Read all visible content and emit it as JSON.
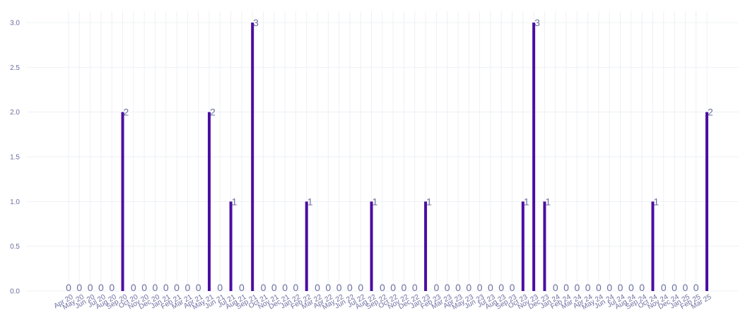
{
  "chart_data": {
    "type": "bar",
    "title": "",
    "xlabel": "",
    "ylabel": "",
    "ylim": [
      0,
      3
    ],
    "yticks": [
      "0.0",
      "0.5",
      "1.0",
      "1.5",
      "2.0",
      "2.5",
      "3.0"
    ],
    "grid": true,
    "bar_color": "#4a0ea3",
    "categories": [
      "Apr 20",
      "May 20",
      "Jun 20",
      "Jul 20",
      "Aug 20",
      "Sep 20",
      "Oct 20",
      "Nov 20",
      "Dec 20",
      "Jan 21",
      "Feb 21",
      "Mar 21",
      "Apr 21",
      "May 21",
      "Jun 21",
      "Jul 21",
      "Aug 21",
      "Sep 21",
      "Oct 21",
      "Nov 21",
      "Dec 21",
      "Jan 22",
      "Feb 22",
      "Mar 22",
      "Apr 22",
      "May 22",
      "Jun 22",
      "Jul 22",
      "Aug 22",
      "Sep 22",
      "Oct 22",
      "Nov 22",
      "Dec 22",
      "Jan 23",
      "Feb 23",
      "Mar 23",
      "Apr 23",
      "May 23",
      "Jun 23",
      "Jul 23",
      "Aug 23",
      "Sep 23",
      "Oct 23",
      "Nov 23",
      "Dec 23",
      "Jan 24",
      "Feb 24",
      "Mar 24",
      "Apr 24",
      "May 24",
      "Jun 24",
      "Jul 24",
      "Aug 24",
      "Sep 24",
      "Oct 24",
      "Nov 24",
      "Dec 24",
      "Jan 25",
      "Feb 25",
      "Mar 25"
    ],
    "values": [
      0,
      0,
      0,
      0,
      0,
      2,
      0,
      0,
      0,
      0,
      0,
      0,
      0,
      2,
      0,
      1,
      0,
      3,
      0,
      0,
      0,
      0,
      1,
      0,
      0,
      0,
      0,
      0,
      1,
      0,
      0,
      0,
      0,
      1,
      0,
      0,
      0,
      0,
      0,
      0,
      0,
      0,
      1,
      3,
      1,
      0,
      0,
      0,
      0,
      0,
      0,
      0,
      0,
      0,
      1,
      0,
      0,
      0,
      0,
      2
    ]
  }
}
